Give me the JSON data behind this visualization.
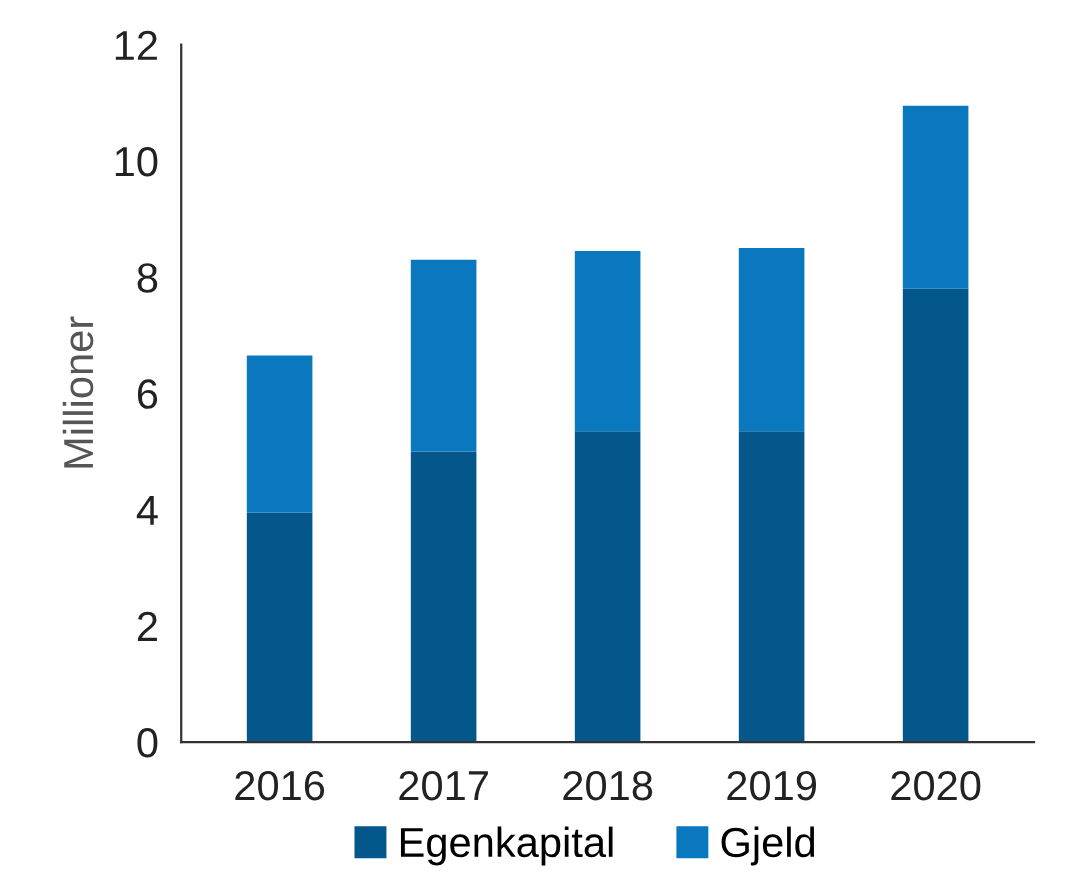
{
  "chart_data": {
    "type": "bar",
    "stacked": true,
    "ylabel": "Millioner",
    "categories": [
      "2016",
      "2017",
      "2018",
      "2019",
      "2020"
    ],
    "series": [
      {
        "name": "Egenkapital",
        "color": "#03578a",
        "values": [
          3.95,
          5.0,
          5.35,
          5.35,
          7.8
        ]
      },
      {
        "name": "Gjeld",
        "color": "#0a78bf",
        "values": [
          2.7,
          3.3,
          3.1,
          3.15,
          3.15
        ]
      }
    ],
    "ylim": [
      0,
      12
    ],
    "yticks": [
      0,
      2,
      4,
      6,
      8,
      10,
      12
    ],
    "grid": false,
    "legend": "bottom"
  }
}
